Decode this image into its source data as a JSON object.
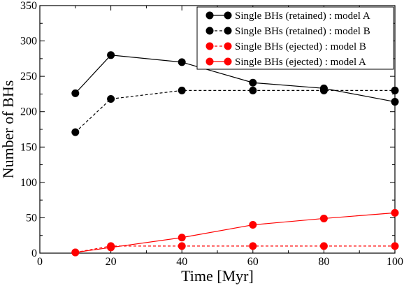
{
  "chart_data": {
    "type": "line",
    "xlabel": "Time [Myr]",
    "ylabel": "Number of BHs",
    "xlim": [
      0,
      100
    ],
    "ylim": [
      0,
      350
    ],
    "xticks": [
      0,
      20,
      40,
      60,
      80,
      100
    ],
    "yticks": [
      0,
      50,
      100,
      150,
      200,
      250,
      300,
      350
    ],
    "grid": false,
    "legend_position": "top-right",
    "series": [
      {
        "name": "Single BHs (retained) : model A",
        "color": "#000000",
        "line_style": "solid",
        "x": [
          10,
          20,
          40,
          60,
          80,
          100
        ],
        "y": [
          226,
          280,
          270,
          241,
          233,
          214
        ]
      },
      {
        "name": "Single BHs (retained) : model B",
        "color": "#000000",
        "line_style": "dashed",
        "x": [
          10,
          20,
          40,
          60,
          80,
          100
        ],
        "y": [
          171,
          218,
          230,
          230,
          230,
          230
        ]
      },
      {
        "name": "Single BHs (ejected) : model B",
        "color": "#ff0000",
        "line_style": "dashed",
        "x": [
          10,
          20,
          40,
          60,
          80,
          100
        ],
        "y": [
          1,
          10,
          10,
          10,
          10,
          10
        ]
      },
      {
        "name": "Single BHs (ejected) : model A",
        "color": "#ff0000",
        "line_style": "solid",
        "x": [
          10,
          20,
          40,
          60,
          80,
          100
        ],
        "y": [
          1,
          8,
          22,
          40,
          49,
          57
        ]
      }
    ]
  }
}
